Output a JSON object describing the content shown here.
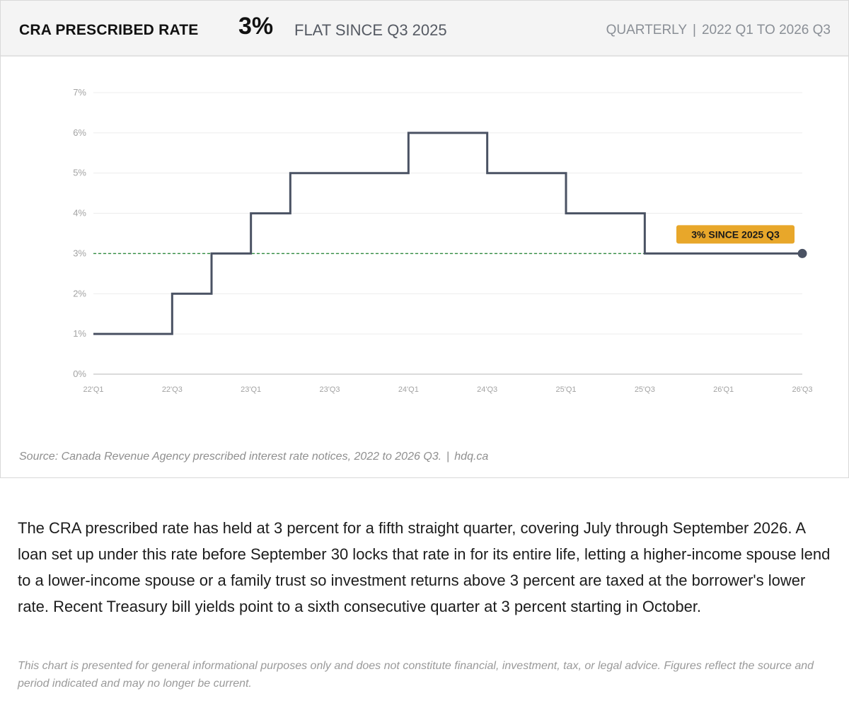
{
  "header": {
    "title": "CRA PRESCRIBED RATE",
    "value": "3%",
    "subtitle": "FLAT SINCE Q3 2025",
    "frequency": "QUARTERLY",
    "range": "2022 Q1 TO 2026 Q3",
    "separator": "|"
  },
  "chart_data": {
    "type": "line",
    "step": true,
    "x": [
      "22'Q1",
      "22'Q2",
      "22'Q3",
      "22'Q4",
      "23'Q1",
      "23'Q2",
      "23'Q3",
      "23'Q4",
      "24'Q1",
      "24'Q2",
      "24'Q3",
      "24'Q4",
      "25'Q1",
      "25'Q2",
      "25'Q3",
      "25'Q4",
      "26'Q1",
      "26'Q2",
      "26'Q3"
    ],
    "series": [
      {
        "values": [
          1,
          1,
          2,
          3,
          4,
          5,
          5,
          5,
          6,
          6,
          5,
          5,
          4,
          4,
          3,
          3,
          3,
          3,
          3
        ],
        "color": "#4a5263"
      }
    ],
    "x_tick_labels": [
      "22'Q1",
      "22'Q3",
      "23'Q1",
      "23'Q3",
      "24'Q1",
      "24'Q3",
      "25'Q1",
      "25'Q3",
      "26'Q1",
      "26'Q3"
    ],
    "y_ticks": [
      0,
      1,
      2,
      3,
      4,
      5,
      6,
      7
    ],
    "y_tick_labels": [
      "0%",
      "1%",
      "2%",
      "3%",
      "4%",
      "5%",
      "6%",
      "7%"
    ],
    "ylim": [
      0,
      7
    ],
    "reference_line": {
      "value": 3,
      "color": "#2e8b3e",
      "style": "dashed"
    },
    "annotation": {
      "text": "3% SINCE 2025 Q3",
      "color": "#e8a72a"
    },
    "grid": true,
    "xlabel": "",
    "ylabel": ""
  },
  "source": {
    "text": "Source: Canada Revenue Agency prescribed interest rate notices, 2022 to 2026 Q3.",
    "separator": "|",
    "site": "hdq.ca"
  },
  "body_text": "The CRA prescribed rate has held at 3 percent for a fifth straight quarter, covering July through September 2026. A loan set up under this rate before September 30 locks that rate in for its entire life, letting a higher-income spouse lend to a lower-income spouse or a family trust so investment returns above 3 percent are taxed at the borrower's lower rate. Recent Treasury bill yields point to a sixth consecutive quarter at 3 percent starting in October.",
  "disclaimer": "This chart is presented for general informational purposes only and does not constitute financial, investment, tax, or legal advice. Figures reflect the source and period indicated and may no longer be current."
}
